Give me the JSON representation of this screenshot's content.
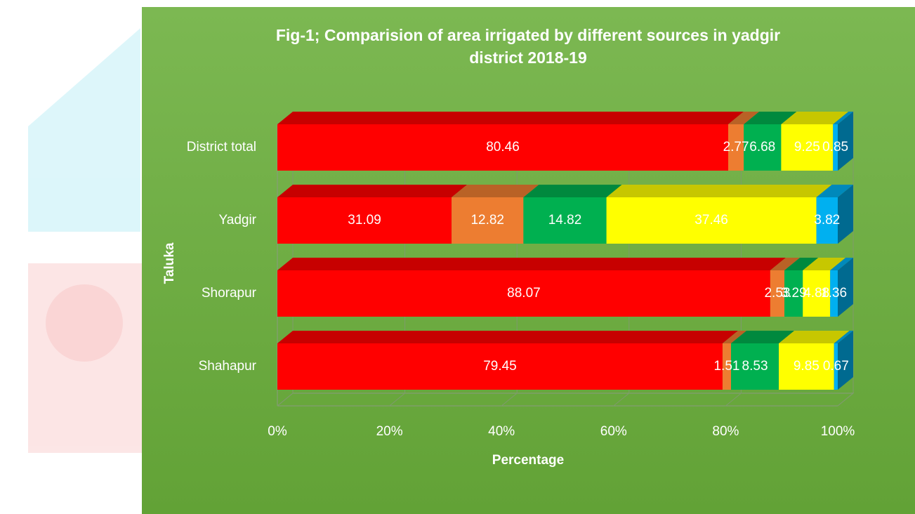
{
  "chart_data": {
    "type": "stacked_bar_horizontal_percent",
    "title": "Fig-1; Comparision of area irrigated by different sources in yadgir district 2018-19",
    "x_label": "Percentage",
    "y_label": "Taluka",
    "categories": [
      "District total",
      "Yadgir",
      "Shorapur",
      "Shahapur"
    ],
    "series": [
      {
        "color": "#ff0000",
        "values": [
          80.46,
          31.09,
          88.07,
          79.45
        ]
      },
      {
        "color": "#ed7d31",
        "values": [
          2.77,
          12.82,
          2.53,
          1.51
        ]
      },
      {
        "color": "#00b050",
        "values": [
          6.68,
          14.82,
          3.29,
          8.53
        ]
      },
      {
        "color": "#ffff00",
        "values": [
          9.25,
          37.46,
          4.88,
          9.85
        ]
      },
      {
        "color": "#00b0f0",
        "values": [
          0.85,
          3.82,
          1.36,
          0.67
        ]
      }
    ],
    "xlim": [
      0,
      100
    ],
    "xticks": [
      {
        "value": 0,
        "label": "0%"
      },
      {
        "value": 20,
        "label": "20%"
      },
      {
        "value": 40,
        "label": "40%"
      },
      {
        "value": 60,
        "label": "60%"
      },
      {
        "value": 80,
        "label": "80%"
      },
      {
        "value": 100,
        "label": "100%"
      }
    ],
    "grid": true
  }
}
